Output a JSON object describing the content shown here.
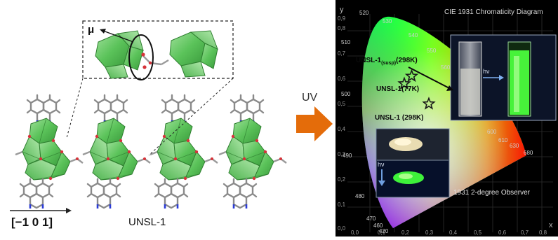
{
  "left": {
    "mu_symbol": "μ",
    "direction_label": "[−1 0 1]",
    "compound_label": "UNSL-1"
  },
  "arrow": {
    "label": "UV",
    "color": "#e46c0a"
  },
  "cie": {
    "title": "CIE 1931 Chromaticity Diagram",
    "x_axis_letter": "x",
    "y_axis_letter": "y",
    "observer_label": "1931 2-degree Observer",
    "y_ticks": [
      "0,9",
      "0,8",
      "0,7",
      "0,6",
      "0,5",
      "0,4",
      "0,3",
      "0,2",
      "0,1",
      "0,0"
    ],
    "x_ticks": [
      "0,0",
      "0,1",
      "0,2",
      "0,3",
      "0,4",
      "0,5",
      "0,6",
      "0,7",
      "0,8"
    ],
    "wavelengths": [
      "520",
      "530",
      "540",
      "510",
      "550",
      "560",
      "500",
      "600",
      "610",
      "630",
      "680",
      "490",
      "480",
      "470",
      "460",
      "420"
    ],
    "points": [
      {
        "label_main": "UNSL-1",
        "label_sub": "(susp)",
        "label_tail": "(298K)",
        "x": 0.27,
        "y": 0.62
      },
      {
        "label_main": "UNSL-1",
        "label_sub": "",
        "label_tail": "(77K)",
        "x": 0.24,
        "y": 0.59
      },
      {
        "label_main": "UNSL-1",
        "label_sub": "",
        "label_tail": " (298K)",
        "x": 0.34,
        "y": 0.51
      }
    ],
    "hv_labels": [
      "hν",
      "hν"
    ],
    "colors": {
      "background": "#000000",
      "star": "#1a1a1a",
      "point_label": "#0a0a0a"
    }
  }
}
